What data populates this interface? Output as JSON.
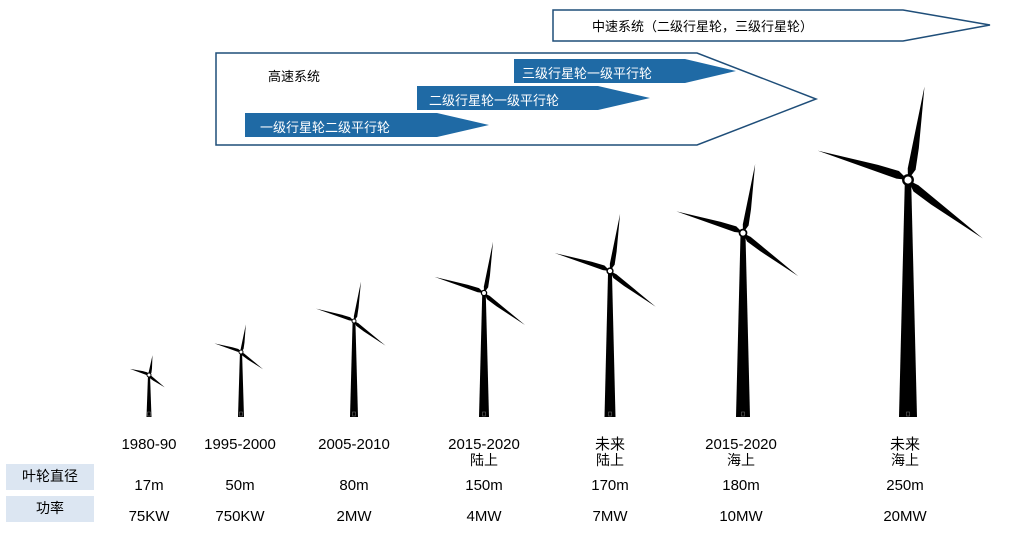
{
  "arrows": {
    "medium_speed": "中速系统（二级行星轮，三级行星轮）",
    "high_speed": "高速系统",
    "bands": [
      "三级行星轮一级平行轮",
      "二级行星轮一级平行轮",
      "一级行星轮二级平行轮"
    ]
  },
  "row_labels": {
    "rotor_diameter": "叶轮直径",
    "power": "功率"
  },
  "columns": [
    {
      "era": "1980-90",
      "era_line2": "",
      "diameter": "17m",
      "power": "75KW"
    },
    {
      "era": "1995-2000",
      "era_line2": "",
      "diameter": "50m",
      "power": "750KW"
    },
    {
      "era": "2005-2010",
      "era_line2": "",
      "diameter": "80m",
      "power": "2MW"
    },
    {
      "era": "2015-2020",
      "era_line2": "陆上",
      "diameter": "150m",
      "power": "4MW"
    },
    {
      "era": "未来",
      "era_line2": "陆上",
      "diameter": "170m",
      "power": "7MW"
    },
    {
      "era": "2015-2020",
      "era_line2": "海上",
      "diameter": "180m",
      "power": "10MW"
    },
    {
      "era": "未来",
      "era_line2": "海上",
      "diameter": "250m",
      "power": "20MW"
    }
  ],
  "colors": {
    "arrow_border": "#1f4e79",
    "band_fill": "#1f6aa5",
    "label_bg": "#dce6f2",
    "turbine": "#000000"
  }
}
